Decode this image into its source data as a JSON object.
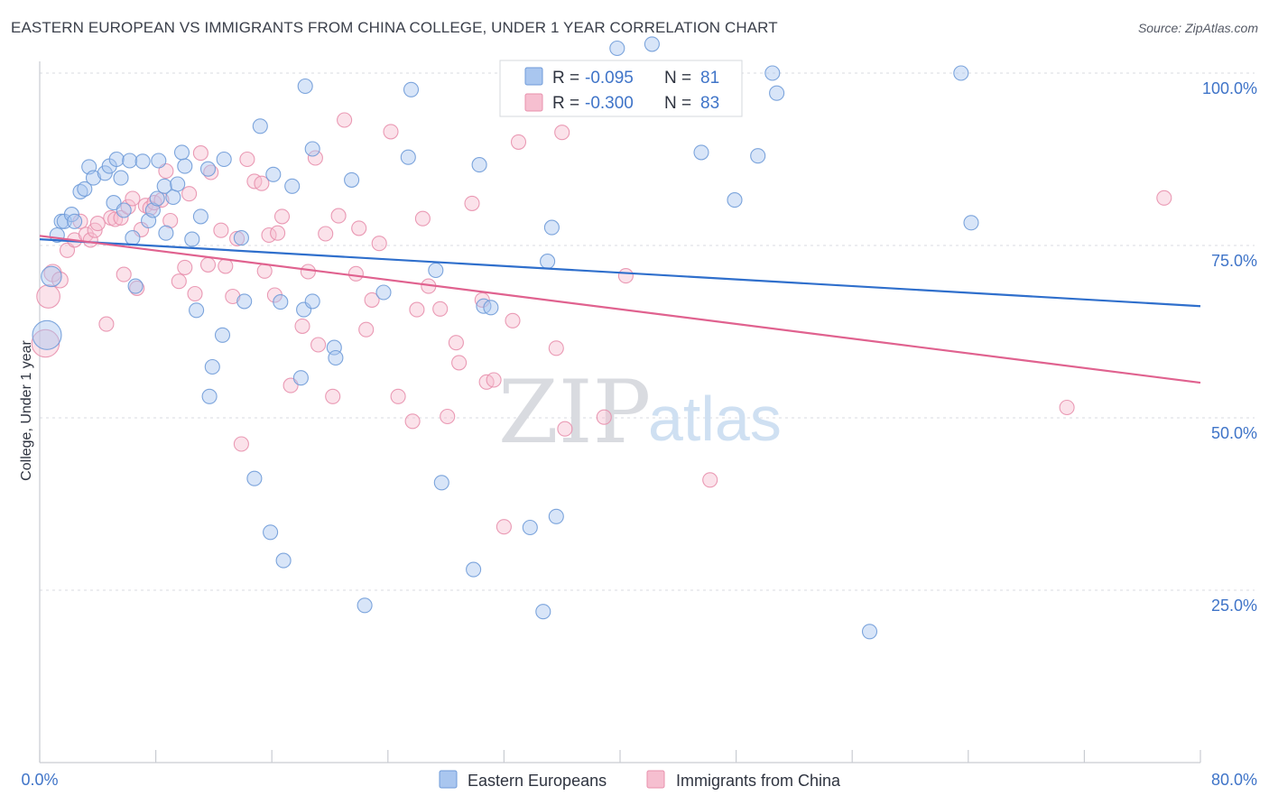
{
  "title": "EASTERN EUROPEAN VS IMMIGRANTS FROM CHINA COLLEGE, UNDER 1 YEAR CORRELATION CHART",
  "source": "Source: ZipAtlas.com",
  "watermark": {
    "zip": "ZIP",
    "atlas": "atlas"
  },
  "colors": {
    "blue_fill": "#a9c6ef",
    "blue_stroke": "#6f9bd8",
    "blue_line": "#2f6fcc",
    "pink_fill": "#f6bfd0",
    "pink_stroke": "#e890ad",
    "pink_line": "#e0628f",
    "tick_text": "#3f74c8",
    "grid": "#d8dbe0"
  },
  "legend": {
    "r_label": "R =",
    "n_label": "N =",
    "series": [
      {
        "r": "-0.095",
        "n": "81"
      },
      {
        "r": "-0.300",
        "n": "83"
      }
    ]
  },
  "bottom_legend": [
    "Eastern Europeans",
    "Immigrants from China"
  ],
  "chart_data": {
    "type": "scatter",
    "title": "EASTERN EUROPEAN VS IMMIGRANTS FROM CHINA COLLEGE, UNDER 1 YEAR CORRELATION CHART",
    "xlabel": "",
    "ylabel": "College, Under 1 year",
    "xlim": [
      0,
      80
    ],
    "ylim": [
      0,
      102
    ],
    "x_tick_labels": [
      "0.0%",
      "80.0%"
    ],
    "y_ticks": [
      25,
      50,
      75,
      100
    ],
    "y_tick_labels": [
      "25.0%",
      "50.0%",
      "75.0%",
      "100.0%"
    ],
    "grid": true,
    "legend_position": "top-center",
    "series": [
      {
        "name": "Eastern Europeans",
        "r": -0.095,
        "n": 81,
        "trend": {
          "x": [
            0,
            80
          ],
          "y": [
            75.9,
            66.2
          ]
        },
        "points": [
          [
            0.5,
            62,
            2.0
          ],
          [
            0.8,
            70.5,
            1.4
          ],
          [
            1.2,
            76.5,
            1
          ],
          [
            1.5,
            78.5,
            1
          ],
          [
            1.7,
            78.5,
            1
          ],
          [
            2.2,
            79.5,
            1
          ],
          [
            2.4,
            78.5,
            1
          ],
          [
            2.8,
            82.8,
            1
          ],
          [
            3.1,
            83.2,
            1
          ],
          [
            3.4,
            86.4,
            1
          ],
          [
            3.7,
            84.8,
            1
          ],
          [
            4.5,
            85.5,
            1
          ],
          [
            4.8,
            86.5,
            1
          ],
          [
            5.1,
            81.2,
            1
          ],
          [
            5.3,
            87.5,
            1
          ],
          [
            5.6,
            84.8,
            1
          ],
          [
            5.8,
            80.1,
            1
          ],
          [
            6.2,
            87.3,
            1
          ],
          [
            6.4,
            76.1,
            1
          ],
          [
            6.6,
            69.1,
            1
          ],
          [
            7.1,
            87.2,
            1
          ],
          [
            7.5,
            78.6,
            1
          ],
          [
            7.8,
            80.1,
            1
          ],
          [
            8.1,
            81.8,
            1
          ],
          [
            8.2,
            87.3,
            1
          ],
          [
            8.6,
            83.6,
            1
          ],
          [
            8.7,
            76.8,
            1
          ],
          [
            9.2,
            82.0,
            1
          ],
          [
            9.5,
            83.9,
            1
          ],
          [
            9.8,
            88.5,
            1
          ],
          [
            10.0,
            86.5,
            1
          ],
          [
            10.5,
            75.9,
            1
          ],
          [
            10.8,
            65.6,
            1
          ],
          [
            11.1,
            79.2,
            1
          ],
          [
            11.6,
            86.1,
            1
          ],
          [
            11.9,
            57.4,
            1
          ],
          [
            11.7,
            53.1,
            1
          ],
          [
            12.7,
            87.5,
            1
          ],
          [
            12.6,
            62.0,
            1
          ],
          [
            13.9,
            76.1,
            1
          ],
          [
            14.1,
            66.9,
            1
          ],
          [
            14.8,
            41.2,
            1
          ],
          [
            15.2,
            92.3,
            1
          ],
          [
            15.9,
            33.4,
            1
          ],
          [
            16.1,
            85.3,
            1
          ],
          [
            16.6,
            66.8,
            1
          ],
          [
            16.8,
            29.3,
            1
          ],
          [
            17.4,
            83.6,
            1
          ],
          [
            18.0,
            55.8,
            1
          ],
          [
            18.2,
            65.7,
            1
          ],
          [
            18.3,
            98.1,
            1
          ],
          [
            18.8,
            89.0,
            1
          ],
          [
            18.8,
            66.9,
            1
          ],
          [
            20.3,
            60.2,
            1
          ],
          [
            20.4,
            58.7,
            1
          ],
          [
            21.5,
            84.5,
            1
          ],
          [
            22.4,
            22.8,
            1
          ],
          [
            23.7,
            68.2,
            1
          ],
          [
            25.4,
            87.8,
            1
          ],
          [
            25.6,
            97.6,
            1
          ],
          [
            27.3,
            71.4,
            1
          ],
          [
            27.7,
            40.6,
            1
          ],
          [
            29.9,
            28.0,
            1
          ],
          [
            30.3,
            86.7,
            1
          ],
          [
            30.6,
            66.2,
            1
          ],
          [
            31.1,
            66.0,
            1
          ],
          [
            33.8,
            34.1,
            1
          ],
          [
            34.7,
            21.9,
            1
          ],
          [
            35.0,
            72.7,
            1
          ],
          [
            35.3,
            77.6,
            1
          ],
          [
            35.6,
            35.7,
            1
          ],
          [
            37.6,
            95.8,
            1
          ],
          [
            39.8,
            103.6,
            1
          ],
          [
            42.2,
            104.2,
            1
          ],
          [
            45.6,
            88.5,
            1
          ],
          [
            47.9,
            81.6,
            1
          ],
          [
            49.5,
            88.0,
            1
          ],
          [
            50.5,
            100.0,
            1
          ],
          [
            50.8,
            97.1,
            1
          ],
          [
            57.2,
            19.0,
            1
          ],
          [
            63.5,
            100.0,
            1
          ],
          [
            64.2,
            78.3,
            1
          ]
        ]
      },
      {
        "name": "Immigrants from China",
        "r": -0.3,
        "n": 83,
        "trend": {
          "x": [
            0,
            80
          ],
          "y": [
            76.4,
            55.1
          ]
        },
        "points": [
          [
            0.4,
            60.8,
            1.9
          ],
          [
            0.6,
            67.6,
            1.6
          ],
          [
            0.9,
            71.0,
            1.2
          ],
          [
            1.4,
            70.0,
            1.1
          ],
          [
            1.9,
            74.3,
            1
          ],
          [
            2.4,
            75.8,
            1
          ],
          [
            2.8,
            78.5,
            1
          ],
          [
            3.2,
            76.6,
            1
          ],
          [
            3.5,
            75.8,
            1
          ],
          [
            3.8,
            77.2,
            1
          ],
          [
            4.0,
            78.2,
            1
          ],
          [
            4.6,
            63.6,
            1
          ],
          [
            4.9,
            79.0,
            1
          ],
          [
            5.2,
            78.8,
            1
          ],
          [
            5.6,
            79.0,
            1
          ],
          [
            5.8,
            70.8,
            1
          ],
          [
            6.1,
            80.6,
            1
          ],
          [
            6.4,
            81.8,
            1
          ],
          [
            6.7,
            68.8,
            1
          ],
          [
            7.0,
            77.3,
            1
          ],
          [
            7.3,
            80.8,
            1
          ],
          [
            7.6,
            80.4,
            1
          ],
          [
            7.9,
            81.2,
            1
          ],
          [
            8.4,
            81.6,
            1
          ],
          [
            8.7,
            85.8,
            1
          ],
          [
            9.0,
            78.6,
            1
          ],
          [
            9.6,
            69.8,
            1
          ],
          [
            10.0,
            71.8,
            1
          ],
          [
            10.3,
            82.5,
            1
          ],
          [
            10.7,
            68.0,
            1
          ],
          [
            11.1,
            88.4,
            1
          ],
          [
            11.6,
            72.2,
            1
          ],
          [
            11.8,
            85.6,
            1
          ],
          [
            12.5,
            77.2,
            1
          ],
          [
            12.8,
            72.0,
            1
          ],
          [
            13.3,
            67.6,
            1
          ],
          [
            13.6,
            76.0,
            1
          ],
          [
            13.9,
            46.2,
            1
          ],
          [
            14.3,
            87.5,
            1
          ],
          [
            14.8,
            84.3,
            1
          ],
          [
            15.3,
            84.0,
            1
          ],
          [
            15.5,
            71.3,
            1
          ],
          [
            15.8,
            76.5,
            1
          ],
          [
            16.2,
            67.8,
            1
          ],
          [
            16.4,
            76.8,
            1
          ],
          [
            16.7,
            79.2,
            1
          ],
          [
            17.3,
            54.7,
            1
          ],
          [
            18.1,
            63.3,
            1
          ],
          [
            18.5,
            71.2,
            1
          ],
          [
            19.0,
            87.7,
            1
          ],
          [
            19.2,
            60.6,
            1
          ],
          [
            19.7,
            76.7,
            1
          ],
          [
            20.2,
            53.1,
            1
          ],
          [
            20.6,
            79.3,
            1
          ],
          [
            21.0,
            93.2,
            1
          ],
          [
            21.8,
            70.9,
            1
          ],
          [
            22.0,
            77.5,
            1
          ],
          [
            22.5,
            62.8,
            1
          ],
          [
            22.9,
            67.1,
            1
          ],
          [
            23.4,
            75.3,
            1
          ],
          [
            24.2,
            91.5,
            1
          ],
          [
            24.7,
            53.1,
            1
          ],
          [
            25.7,
            49.5,
            1
          ],
          [
            26.0,
            65.7,
            1
          ],
          [
            26.4,
            78.9,
            1
          ],
          [
            26.8,
            69.1,
            1
          ],
          [
            27.6,
            65.8,
            1
          ],
          [
            28.1,
            50.2,
            1
          ],
          [
            28.7,
            60.9,
            1
          ],
          [
            28.9,
            58.0,
            1
          ],
          [
            29.8,
            81.1,
            1
          ],
          [
            30.5,
            67.1,
            1
          ],
          [
            30.8,
            55.2,
            1
          ],
          [
            31.3,
            55.5,
            1
          ],
          [
            32.0,
            34.2,
            1
          ],
          [
            32.6,
            64.1,
            1
          ],
          [
            33.0,
            90.0,
            1
          ],
          [
            35.6,
            60.1,
            1
          ],
          [
            36.0,
            91.4,
            1
          ],
          [
            36.2,
            48.4,
            1
          ],
          [
            38.9,
            50.1,
            1
          ],
          [
            40.4,
            70.6,
            1
          ],
          [
            46.2,
            41.0,
            1
          ],
          [
            70.8,
            51.5,
            1
          ],
          [
            77.5,
            81.9,
            1
          ]
        ]
      }
    ]
  }
}
